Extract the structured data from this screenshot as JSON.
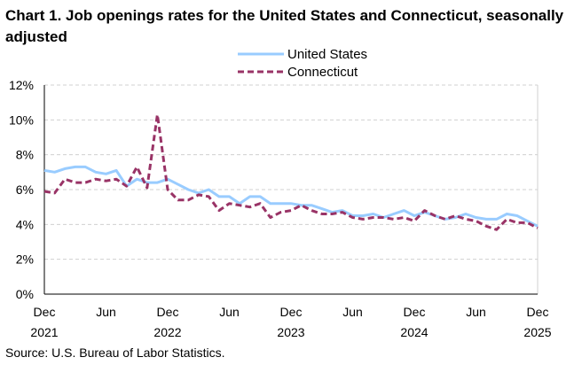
{
  "chart_data": {
    "type": "line",
    "title": "Chart 1. Job openings rates for the United States and Connecticut, seasonally adjusted",
    "source": "Source: U.S. Bureau of Labor Statistics.",
    "ylim": [
      0,
      12
    ],
    "yticks": [
      "0%",
      "2%",
      "4%",
      "6%",
      "8%",
      "10%",
      "12%"
    ],
    "xticks": [
      {
        "month": "Dec",
        "year": "2021"
      },
      {
        "month": "Jun",
        "year": ""
      },
      {
        "month": "Dec",
        "year": "2022"
      },
      {
        "month": "Jun",
        "year": ""
      },
      {
        "month": "Dec",
        "year": "2023"
      },
      {
        "month": "Jun",
        "year": ""
      },
      {
        "month": "Dec",
        "year": "2024"
      },
      {
        "month": "Jun",
        "year": ""
      },
      {
        "month": "Dec",
        "year": "2025"
      }
    ],
    "x_range": [
      "Dec 2021",
      "Dec 2025"
    ],
    "grid": true,
    "legend_placement": "top-center",
    "series": [
      {
        "name": "United States",
        "color": "#99ccff",
        "style": "solid",
        "values": [
          7.1,
          7.0,
          7.2,
          7.3,
          7.3,
          7.0,
          6.9,
          7.1,
          6.2,
          6.6,
          6.4,
          6.4,
          6.6,
          6.3,
          6.0,
          5.8,
          6.0,
          5.6,
          5.6,
          5.2,
          5.6,
          5.6,
          5.2,
          5.2,
          5.2,
          5.1,
          5.1,
          4.9,
          4.7,
          4.8,
          4.5,
          4.5,
          4.6,
          4.4,
          4.6,
          4.8,
          4.5,
          4.7,
          4.5,
          4.3,
          4.4,
          4.6,
          4.4,
          4.3,
          4.3,
          4.6,
          4.5,
          4.2,
          3.9
        ]
      },
      {
        "name": "Connecticut",
        "color": "#993366",
        "style": "dashed",
        "values": [
          5.9,
          5.8,
          6.6,
          6.4,
          6.4,
          6.6,
          6.5,
          6.6,
          6.2,
          7.3,
          6.1,
          10.3,
          6.0,
          5.4,
          5.4,
          5.7,
          5.6,
          4.8,
          5.2,
          5.1,
          5.0,
          5.2,
          4.4,
          4.7,
          4.8,
          5.1,
          4.8,
          4.6,
          4.6,
          4.7,
          4.4,
          4.3,
          4.4,
          4.4,
          4.3,
          4.4,
          4.2,
          4.8,
          4.5,
          4.3,
          4.5,
          4.3,
          4.2,
          3.9,
          3.7,
          4.3,
          4.1,
          4.1,
          3.8
        ]
      }
    ]
  }
}
